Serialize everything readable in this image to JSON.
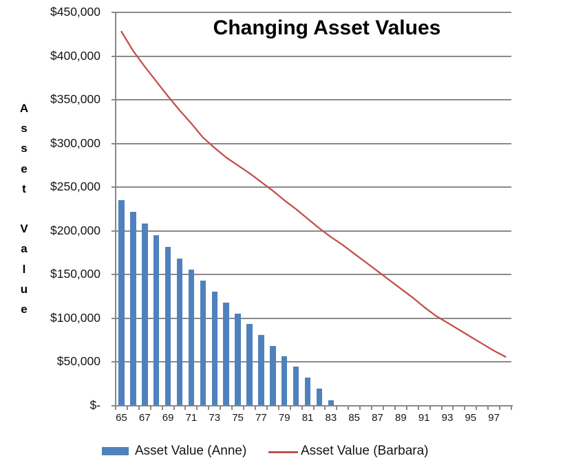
{
  "title": "Changing Asset Values",
  "y_axis": {
    "title": "Asset Value",
    "tick_labels": [
      "$450,000",
      "$400,000",
      "$350,000",
      "$300,000",
      "$250,000",
      "$200,000",
      "$150,000",
      "$100,000",
      "$50,000",
      "$-"
    ]
  },
  "x_axis": {
    "tick_labels": [
      "65",
      "67",
      "69",
      "71",
      "73",
      "75",
      "77",
      "79",
      "81",
      "83",
      "85",
      "87",
      "89",
      "91",
      "93",
      "95",
      "97"
    ]
  },
  "legend": {
    "anne": "Asset Value (Anne)",
    "barbara": "Asset Value (Barbara)"
  },
  "colors": {
    "anne_bar": "#4F81BD",
    "barbara_line": "#C0504D",
    "gridline": "#898989",
    "text": "#151515"
  },
  "chart_data": {
    "type": "bar",
    "title": "Changing Asset Values",
    "xlabel": "",
    "ylabel": "Asset Value",
    "ylim": [
      0,
      450000
    ],
    "ytick_step": 50000,
    "grid": "horizontal",
    "legend_position": "bottom",
    "categories": [
      65,
      66,
      67,
      68,
      69,
      70,
      71,
      72,
      73,
      74,
      75,
      76,
      77,
      78,
      79,
      80,
      81,
      82,
      83,
      84,
      85,
      86,
      87,
      88,
      89,
      90,
      91,
      92,
      93,
      94,
      95,
      96,
      97,
      98
    ],
    "series": [
      {
        "name": "Asset Value (Anne)",
        "type": "bar",
        "color": "#4F81BD",
        "values": [
          235000,
          222000,
          208500,
          195000,
          181500,
          168500,
          155500,
          143000,
          130500,
          118000,
          105500,
          93500,
          81000,
          68500,
          57000,
          44500,
          32000,
          20000,
          6500,
          null,
          null,
          null,
          null,
          null,
          null,
          null,
          null,
          null,
          null,
          null,
          null,
          null,
          null,
          null
        ]
      },
      {
        "name": "Asset Value (Barbara)",
        "type": "line",
        "color": "#C0504D",
        "values": [
          428000,
          406000,
          388000,
          371000,
          354000,
          338000,
          323000,
          307000,
          295000,
          284000,
          275000,
          266000,
          256000,
          246000,
          235000,
          225000,
          214000,
          203000,
          193000,
          184000,
          174000,
          164000,
          154000,
          144000,
          134000,
          124000,
          113000,
          103000,
          95000,
          87000,
          79000,
          71000,
          63000,
          56000
        ]
      }
    ]
  }
}
